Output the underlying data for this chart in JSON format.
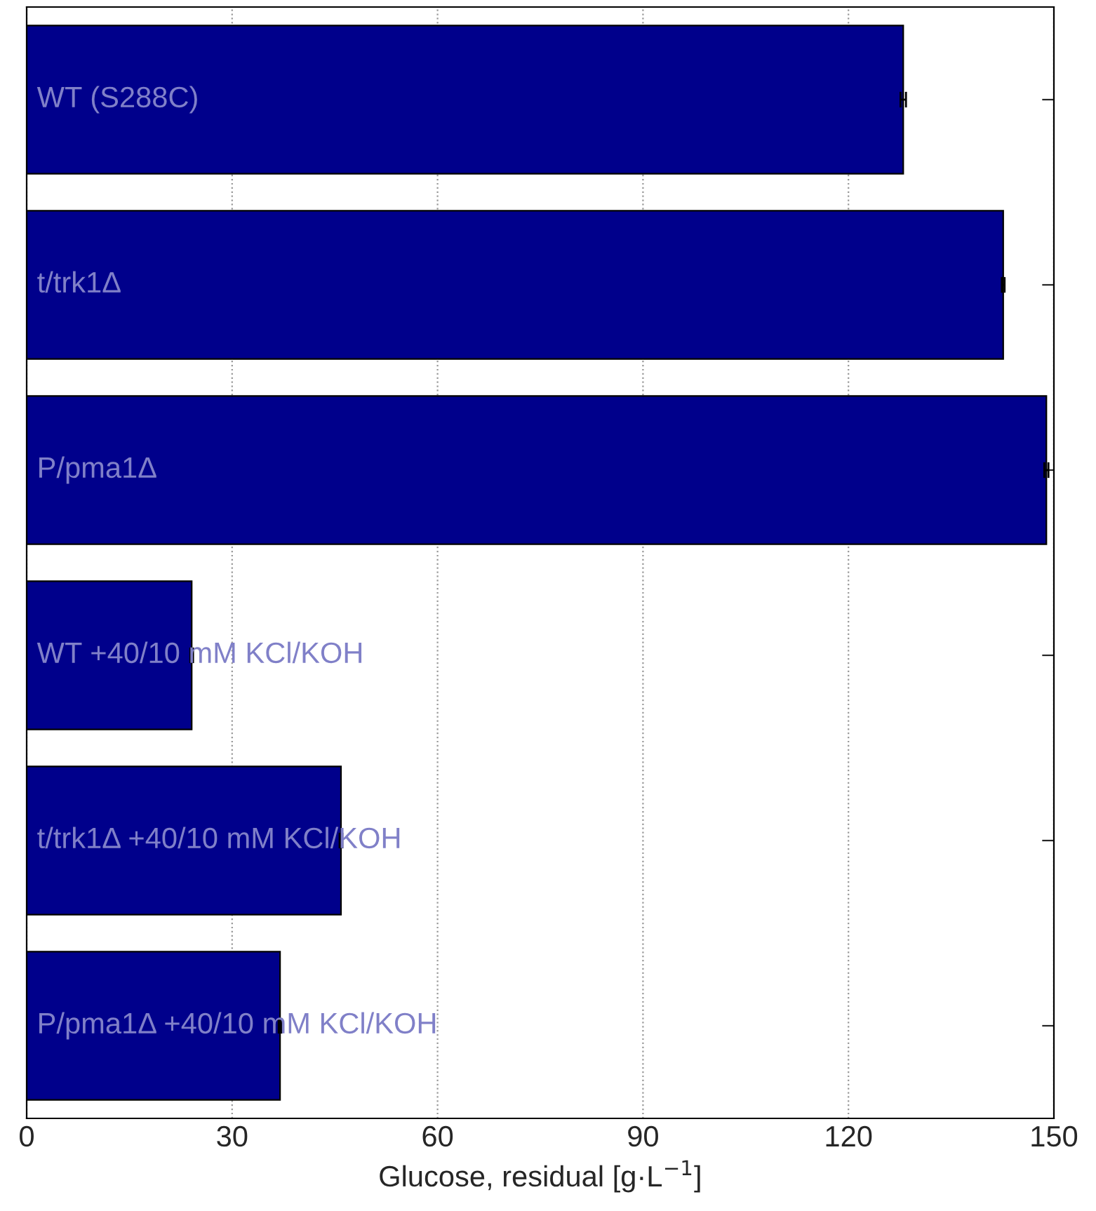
{
  "chart_data": {
    "type": "bar",
    "orientation": "horizontal",
    "xlabel": "Glucose, residual [g·L$^{−1}$]",
    "categories": [
      "WT (S288C)",
      "t/trk1Δ",
      "P/pma1Δ",
      "WT +40/10 mM KCl/KOH",
      "t/trk1Δ +40/10 mM KCl/KOH",
      "P/pma1Δ +40/10 mM KCl/KOH"
    ],
    "values": [
      128.0,
      142.6,
      148.9,
      24.1,
      45.9,
      37.0
    ],
    "errors": [
      0.4,
      0.2,
      0.3,
      0.2,
      0.2,
      0.2
    ],
    "color": "#00008b",
    "xlim": [
      0,
      150
    ],
    "xticks": [
      0,
      30,
      60,
      90,
      120,
      150
    ],
    "grid": "x"
  }
}
